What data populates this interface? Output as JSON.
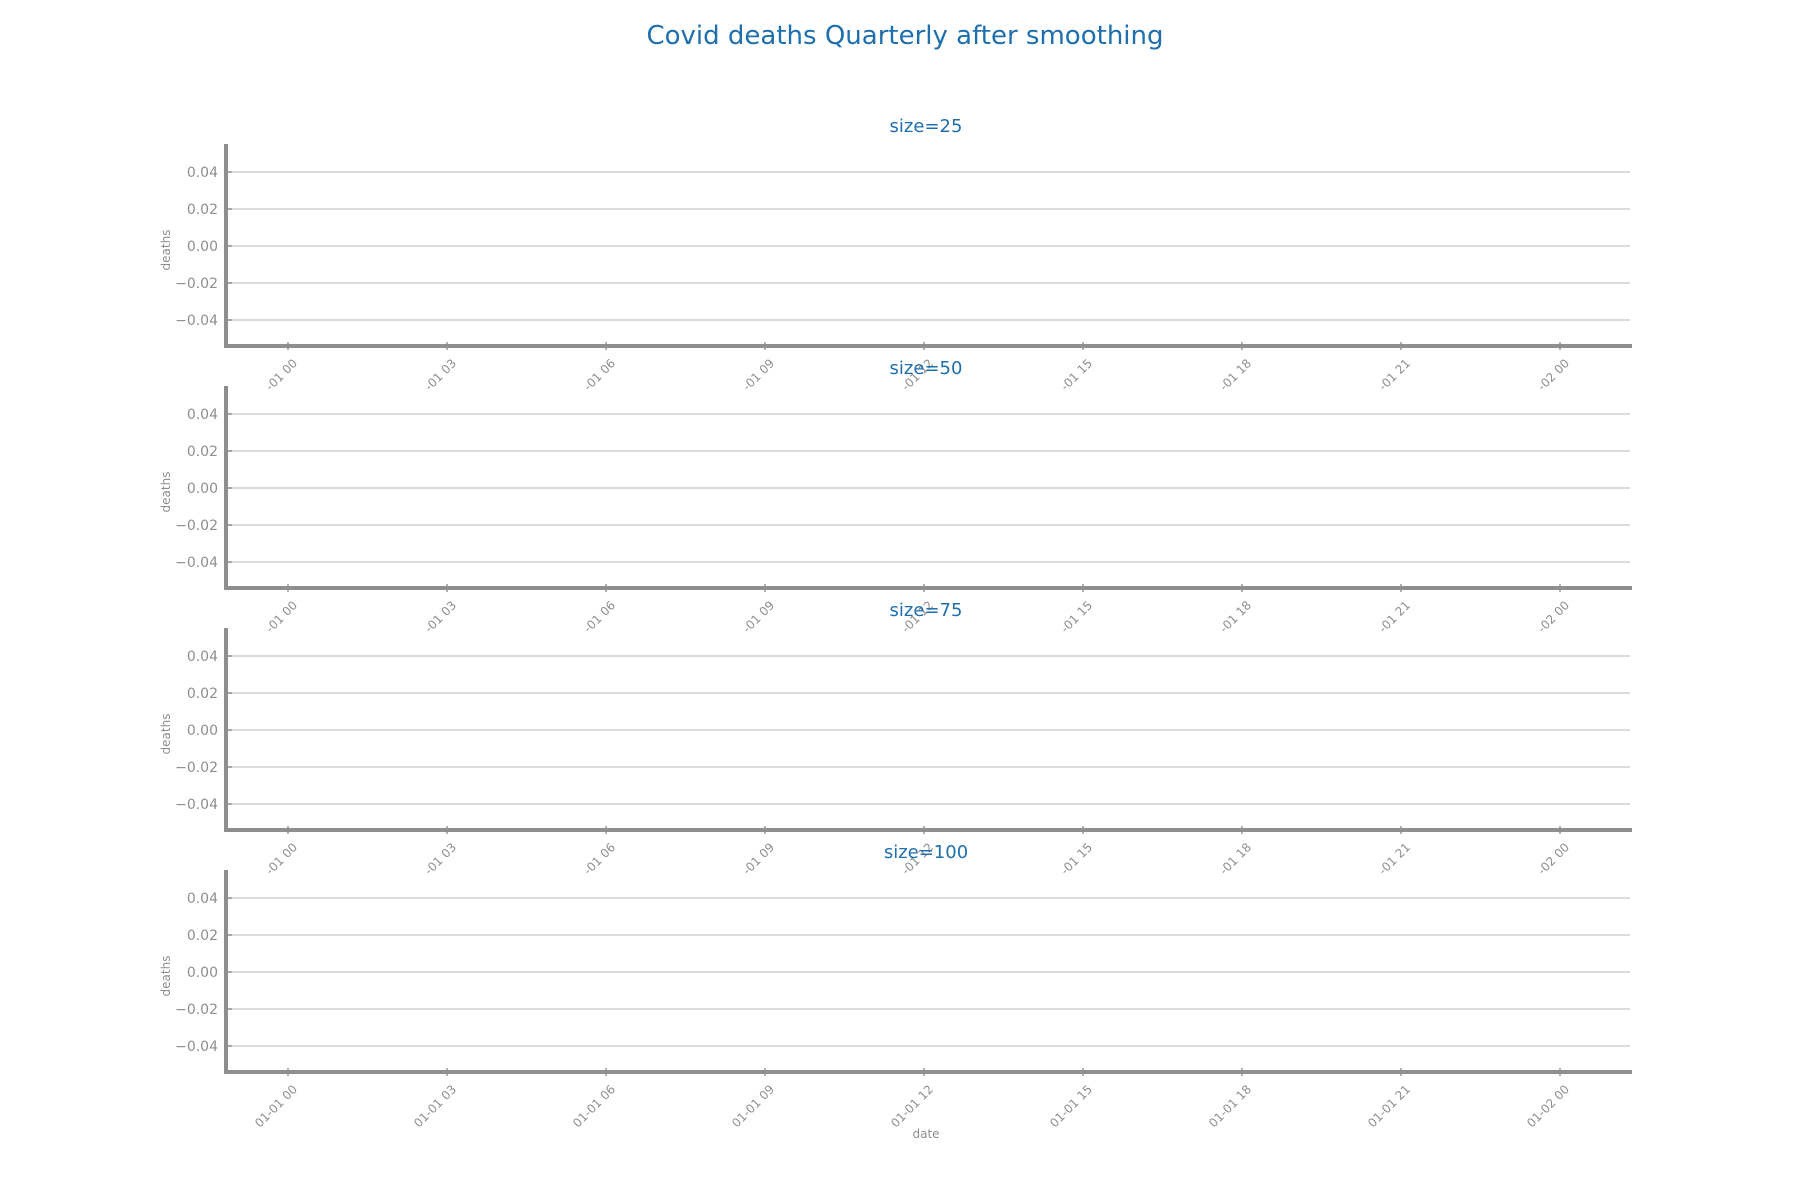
{
  "colors": {
    "title": "#1f6fad",
    "axis": "#8e8e8e",
    "grid": "#cfcfcf",
    "background": "#ffffff"
  },
  "chart_data": {
    "type": "line",
    "title": "Covid deaths Quarterly after smoothing",
    "xlabel": "date",
    "ylabel": "deaths",
    "grid": "horizontal",
    "yticks": [
      "0.04",
      "0.02",
      "0.00",
      "−0.02",
      "−0.04"
    ],
    "ytick_values": [
      0.04,
      0.02,
      0.0,
      -0.02,
      -0.04
    ],
    "ylim": [
      -0.055,
      0.055
    ],
    "xtick_values": [
      0,
      3,
      6,
      9,
      12,
      15,
      18,
      21,
      24
    ],
    "xlim_hours": [
      -1,
      46
    ],
    "xticks_full": [
      "01-01 00",
      "01-01 03",
      "01-01 06",
      "01-01 09",
      "01-01 12",
      "01-01 15",
      "01-01 18",
      "01-01 21",
      "01-02 00"
    ],
    "xticks_clipped": [
      "-01 00",
      "-01 03",
      "-01 06",
      "-01 09",
      "-01 12",
      "-01 15",
      "-01 18",
      "-01 21",
      "-02 00"
    ],
    "subplots": [
      {
        "title": "size=25",
        "series": []
      },
      {
        "title": "size=50",
        "series": []
      },
      {
        "title": "size=75",
        "series": []
      },
      {
        "title": "size=100",
        "series": []
      }
    ]
  }
}
